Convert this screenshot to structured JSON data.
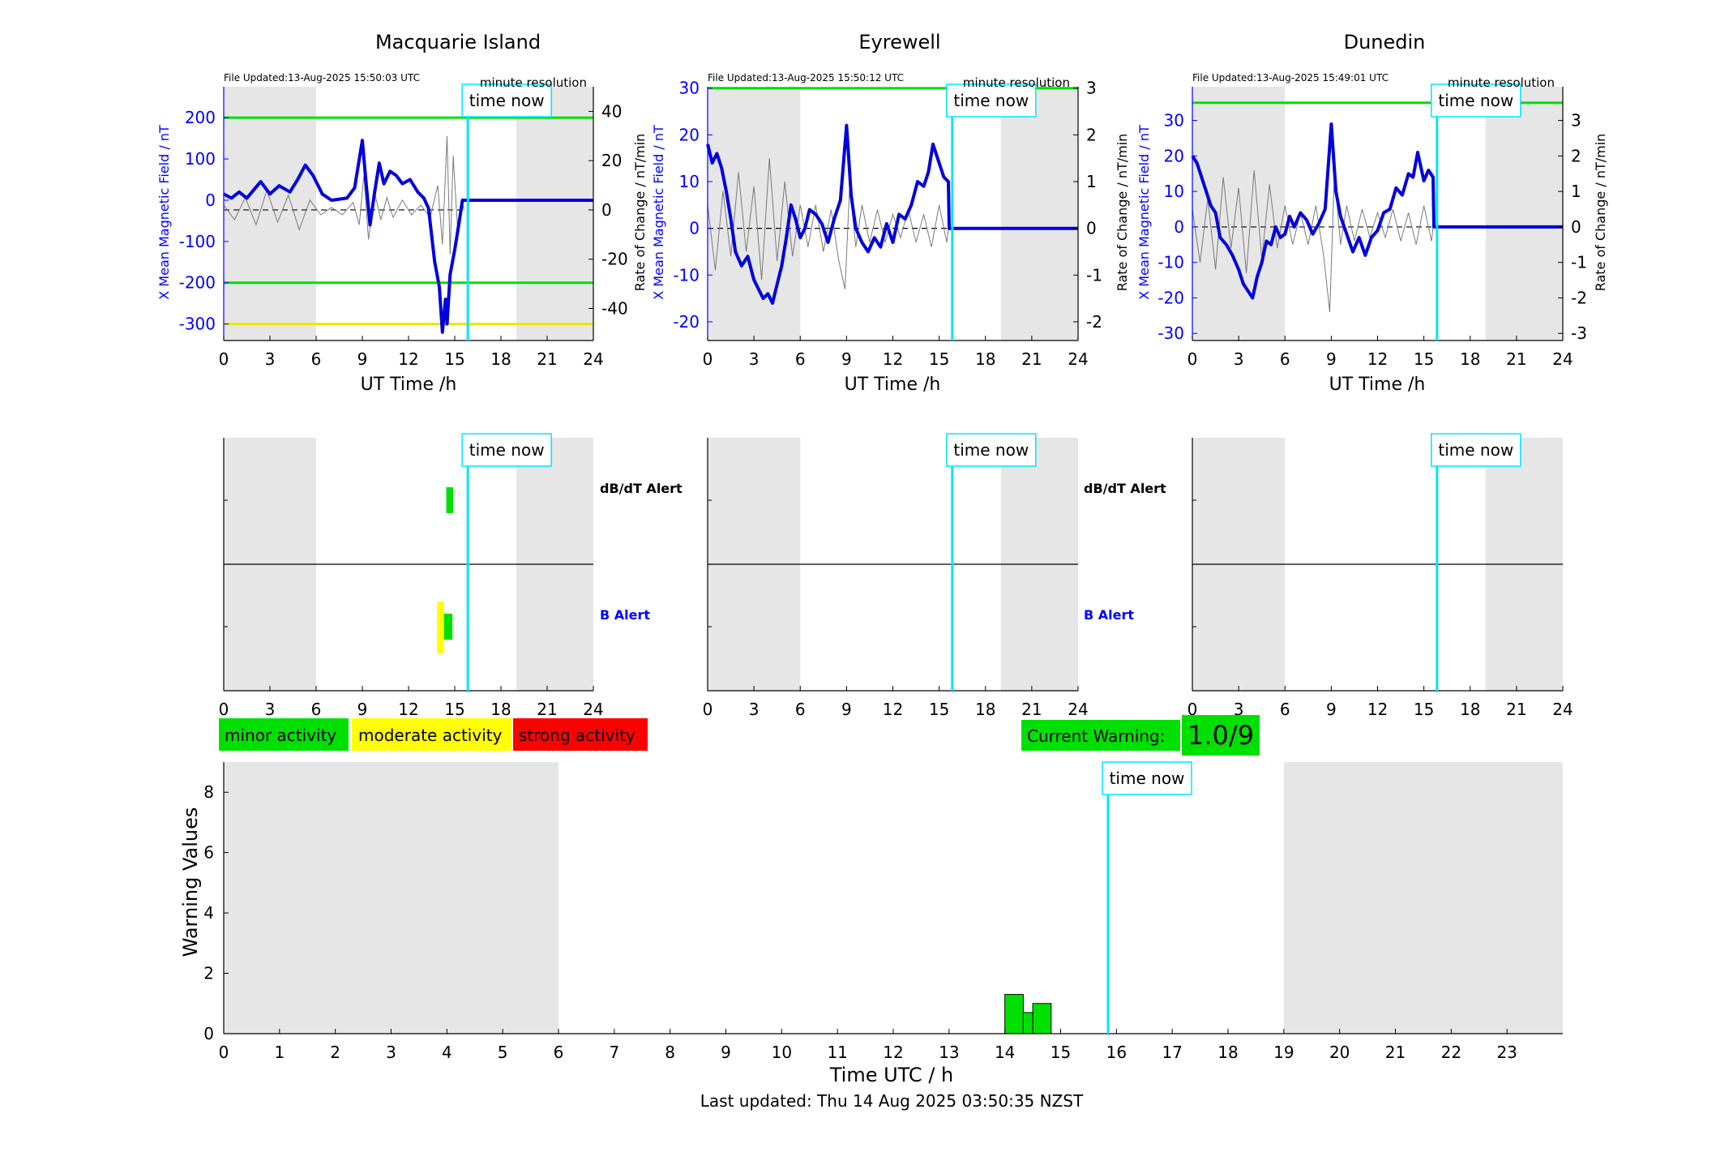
{
  "stations": [
    {
      "name": "Macquarie Island",
      "file_updated": "File Updated:13-Aug-2025 15:50:03 UTC",
      "resolution": "minute resolution",
      "left_axis": {
        "label": "X Mean Magnetic Field / nT",
        "min": -340,
        "max": 275,
        "ticks": [
          200,
          100,
          0,
          -100,
          -200,
          -300
        ]
      },
      "right_axis": {
        "label": "Rate of Change / nT/min",
        "min": -53,
        "max": 50,
        "ticks": [
          40,
          20,
          0,
          -20,
          -40
        ]
      },
      "threshold_lines": [
        {
          "value": 200,
          "color": "#00e000"
        },
        {
          "value": -200,
          "color": "#00e000"
        },
        {
          "value": -300,
          "color": "#e8e800"
        }
      ],
      "field_trace": [
        [
          0,
          15
        ],
        [
          0.5,
          5
        ],
        [
          1,
          20
        ],
        [
          1.5,
          5
        ],
        [
          2.4,
          45
        ],
        [
          3,
          15
        ],
        [
          3.6,
          35
        ],
        [
          4.3,
          20
        ],
        [
          4.8,
          50
        ],
        [
          5.3,
          85
        ],
        [
          5.8,
          60
        ],
        [
          6.4,
          15
        ],
        [
          7,
          0
        ],
        [
          8,
          5
        ],
        [
          8.5,
          30
        ],
        [
          9,
          145
        ],
        [
          9.2,
          60
        ],
        [
          9.5,
          -60
        ],
        [
          9.8,
          20
        ],
        [
          10.1,
          90
        ],
        [
          10.4,
          40
        ],
        [
          10.8,
          70
        ],
        [
          11.2,
          60
        ],
        [
          11.6,
          40
        ],
        [
          12.1,
          50
        ],
        [
          12.6,
          20
        ],
        [
          13,
          5
        ],
        [
          13.3,
          -20
        ],
        [
          13.7,
          -150
        ],
        [
          14,
          -210
        ],
        [
          14.2,
          -320
        ],
        [
          14.4,
          -240
        ],
        [
          14.5,
          -300
        ],
        [
          14.7,
          -180
        ],
        [
          15,
          -120
        ],
        [
          15.3,
          -50
        ],
        [
          15.5,
          0
        ],
        [
          15.6,
          0
        ],
        [
          24,
          0
        ]
      ],
      "rate_trace": [
        [
          0,
          2
        ],
        [
          0.7,
          -4
        ],
        [
          1.4,
          5
        ],
        [
          2.1,
          -6
        ],
        [
          2.8,
          8
        ],
        [
          3.5,
          -5
        ],
        [
          4.2,
          6
        ],
        [
          4.9,
          -8
        ],
        [
          5.6,
          4
        ],
        [
          6.3,
          -2
        ],
        [
          7,
          1
        ],
        [
          7.7,
          -2
        ],
        [
          8.4,
          3
        ],
        [
          8.8,
          -6
        ],
        [
          9.1,
          14
        ],
        [
          9.4,
          -12
        ],
        [
          9.8,
          7
        ],
        [
          10.2,
          -4
        ],
        [
          10.6,
          5
        ],
        [
          11,
          -3
        ],
        [
          11.6,
          4
        ],
        [
          12.2,
          -2
        ],
        [
          12.8,
          2
        ],
        [
          13.4,
          -3
        ],
        [
          13.9,
          10
        ],
        [
          14.2,
          -14
        ],
        [
          14.5,
          30
        ],
        [
          14.7,
          -18
        ],
        [
          14.9,
          22
        ],
        [
          15.2,
          -9
        ],
        [
          15.5,
          3
        ],
        [
          15.6,
          0
        ]
      ],
      "rate_span_end": 15.6,
      "alert_blocks": [
        {
          "row": "dBdT",
          "start": 14.45,
          "end": 14.9,
          "color": "#00e000"
        },
        {
          "row": "B",
          "start": 13.85,
          "end": 14.3,
          "color": "#ffff00",
          "tall": true
        },
        {
          "row": "B",
          "start": 14.3,
          "end": 14.85,
          "color": "#00e000"
        }
      ],
      "alert_labels": {
        "dbdt": "dB/dT Alert",
        "b": "B Alert"
      }
    },
    {
      "name": "Eyrewell",
      "file_updated": "File Updated:13-Aug-2025 15:50:12 UTC",
      "resolution": "minute resolution",
      "left_axis": {
        "label": "X Mean Magnetic Field / nT",
        "min": -24,
        "max": 30.3,
        "ticks": [
          30,
          20,
          10,
          0,
          -10,
          -20
        ]
      },
      "right_axis": {
        "label": "Rate of Change / nT/min",
        "min": -2.4,
        "max": 3.03,
        "ticks": [
          3,
          2,
          1,
          0,
          -1,
          -2
        ]
      },
      "threshold_lines": [
        {
          "value": 30,
          "color": "#00e000"
        }
      ],
      "field_trace": [
        [
          0,
          18
        ],
        [
          0.3,
          14
        ],
        [
          0.6,
          16
        ],
        [
          0.9,
          13
        ],
        [
          1.2,
          8
        ],
        [
          1.5,
          2
        ],
        [
          1.8,
          -5
        ],
        [
          2.2,
          -8
        ],
        [
          2.6,
          -6
        ],
        [
          3,
          -11
        ],
        [
          3.3,
          -13
        ],
        [
          3.6,
          -15
        ],
        [
          3.9,
          -14
        ],
        [
          4.2,
          -16
        ],
        [
          4.5,
          -12
        ],
        [
          4.8,
          -8
        ],
        [
          5.1,
          -2
        ],
        [
          5.4,
          5
        ],
        [
          5.7,
          2
        ],
        [
          6,
          -2
        ],
        [
          6.3,
          0
        ],
        [
          6.6,
          4
        ],
        [
          7,
          3
        ],
        [
          7.4,
          1
        ],
        [
          7.8,
          -3
        ],
        [
          8.2,
          2
        ],
        [
          8.6,
          6
        ],
        [
          9,
          22
        ],
        [
          9.3,
          7
        ],
        [
          9.6,
          0
        ],
        [
          10,
          -3
        ],
        [
          10.4,
          -5
        ],
        [
          10.8,
          -2
        ],
        [
          11.2,
          -4
        ],
        [
          11.6,
          1
        ],
        [
          12,
          -3
        ],
        [
          12.4,
          3
        ],
        [
          12.8,
          2
        ],
        [
          13.2,
          5
        ],
        [
          13.6,
          10
        ],
        [
          14,
          9
        ],
        [
          14.3,
          12
        ],
        [
          14.6,
          18
        ],
        [
          15,
          14
        ],
        [
          15.3,
          11
        ],
        [
          15.6,
          10
        ],
        [
          15.65,
          0
        ],
        [
          24,
          0
        ]
      ],
      "rate_trace": [
        [
          0,
          0.5
        ],
        [
          0.5,
          -0.9
        ],
        [
          1,
          0.8
        ],
        [
          1.5,
          -0.6
        ],
        [
          2,
          1.2
        ],
        [
          2.5,
          -0.5
        ],
        [
          3,
          0.9
        ],
        [
          3.5,
          -1.1
        ],
        [
          4,
          1.5
        ],
        [
          4.5,
          -0.7
        ],
        [
          5,
          1
        ],
        [
          5.5,
          -0.6
        ],
        [
          6,
          0.5
        ],
        [
          6.5,
          -0.4
        ],
        [
          7,
          0.5
        ],
        [
          7.5,
          -0.5
        ],
        [
          8,
          0.4
        ],
        [
          8.5,
          -0.7
        ],
        [
          8.9,
          -1.3
        ],
        [
          9.2,
          0.9
        ],
        [
          9.6,
          -0.4
        ],
        [
          10,
          0.5
        ],
        [
          10.5,
          -0.3
        ],
        [
          11,
          0.4
        ],
        [
          11.5,
          -0.3
        ],
        [
          12,
          0.3
        ],
        [
          12.5,
          -0.2
        ],
        [
          13,
          0.4
        ],
        [
          13.5,
          -0.3
        ],
        [
          14,
          0.3
        ],
        [
          14.5,
          -0.4
        ],
        [
          15,
          0.5
        ],
        [
          15.5,
          -0.3
        ],
        [
          15.6,
          0
        ]
      ],
      "rate_span_end": 15.6,
      "alert_blocks": [],
      "alert_labels": {
        "dbdt": "dB/dT Alert",
        "b": "B Alert"
      }
    },
    {
      "name": "Dunedin",
      "file_updated": "File Updated:13-Aug-2025 15:49:01 UTC",
      "resolution": "minute resolution",
      "left_axis": {
        "label": "X Mean Magnetic Field / nT",
        "min": -32,
        "max": 39.5,
        "ticks": [
          30,
          20,
          10,
          0,
          -10,
          -20,
          -30
        ]
      },
      "right_axis": {
        "label": "Rate of Change / nT/min",
        "min": -3.2,
        "max": 3.95,
        "ticks": [
          3,
          2,
          1,
          0,
          -1,
          -2,
          -3
        ]
      },
      "threshold_lines": [
        {
          "value": 35,
          "color": "#00e000"
        }
      ],
      "field_trace": [
        [
          0,
          20
        ],
        [
          0.3,
          18
        ],
        [
          0.6,
          14
        ],
        [
          0.9,
          10
        ],
        [
          1.2,
          6
        ],
        [
          1.5,
          4
        ],
        [
          1.8,
          -3
        ],
        [
          2.2,
          -5
        ],
        [
          2.6,
          -8
        ],
        [
          3,
          -12
        ],
        [
          3.3,
          -16
        ],
        [
          3.6,
          -18
        ],
        [
          3.9,
          -20
        ],
        [
          4.2,
          -14
        ],
        [
          4.5,
          -10
        ],
        [
          4.8,
          -4
        ],
        [
          5.1,
          -5
        ],
        [
          5.4,
          0
        ],
        [
          5.7,
          -3
        ],
        [
          6,
          -2
        ],
        [
          6.3,
          3
        ],
        [
          6.6,
          0
        ],
        [
          7,
          4
        ],
        [
          7.4,
          2
        ],
        [
          7.8,
          -2
        ],
        [
          8.2,
          1
        ],
        [
          8.6,
          5
        ],
        [
          9,
          29
        ],
        [
          9.3,
          10
        ],
        [
          9.6,
          3
        ],
        [
          10,
          -2
        ],
        [
          10.4,
          -7
        ],
        [
          10.8,
          -3
        ],
        [
          11.2,
          -8
        ],
        [
          11.6,
          -3
        ],
        [
          12,
          -1
        ],
        [
          12.4,
          4
        ],
        [
          12.8,
          5
        ],
        [
          13.2,
          11
        ],
        [
          13.6,
          9
        ],
        [
          14,
          15
        ],
        [
          14.3,
          14
        ],
        [
          14.6,
          21
        ],
        [
          15,
          13
        ],
        [
          15.3,
          16
        ],
        [
          15.6,
          14
        ],
        [
          15.65,
          0
        ],
        [
          24,
          0
        ]
      ],
      "rate_trace": [
        [
          0,
          0.5
        ],
        [
          0.5,
          -1
        ],
        [
          1,
          0.8
        ],
        [
          1.5,
          -1.2
        ],
        [
          2,
          1.4
        ],
        [
          2.5,
          -0.6
        ],
        [
          3,
          1.1
        ],
        [
          3.5,
          -1.3
        ],
        [
          4,
          1.6
        ],
        [
          4.5,
          -0.9
        ],
        [
          5,
          1.2
        ],
        [
          5.5,
          -0.6
        ],
        [
          6,
          0.6
        ],
        [
          6.5,
          -0.5
        ],
        [
          7,
          0.4
        ],
        [
          7.5,
          -0.5
        ],
        [
          8,
          0.6
        ],
        [
          8.5,
          -0.8
        ],
        [
          8.9,
          -2.4
        ],
        [
          9.2,
          1.5
        ],
        [
          9.6,
          -0.5
        ],
        [
          10,
          0.6
        ],
        [
          10.5,
          -0.4
        ],
        [
          11,
          0.5
        ],
        [
          11.5,
          -0.3
        ],
        [
          12,
          0.4
        ],
        [
          12.5,
          -0.3
        ],
        [
          13,
          0.5
        ],
        [
          13.5,
          -0.4
        ],
        [
          14,
          0.4
        ],
        [
          14.5,
          -0.5
        ],
        [
          15,
          0.6
        ],
        [
          15.5,
          -0.4
        ],
        [
          15.6,
          0
        ]
      ],
      "rate_span_end": 15.6,
      "alert_blocks": [],
      "alert_labels": {
        "dbdt": "dB/dT Alert",
        "b": "B Alert"
      }
    }
  ],
  "top_axis_label": "UT Time /h",
  "hour_ticks": [
    "0",
    "3",
    "6",
    "9",
    "12",
    "15",
    "18",
    "21",
    "24"
  ],
  "night_bands": [
    [
      0,
      6
    ],
    [
      19,
      24
    ]
  ],
  "time_now_hours": 15.85,
  "time_now_label": "time now",
  "legend": [
    {
      "label": "minor activity",
      "color": "#00e000"
    },
    {
      "label": "moderate activity",
      "color": "#ffff00"
    },
    {
      "label": "strong activity",
      "color": "#ff0000"
    }
  ],
  "current_warning": {
    "label": "Current Warning:",
    "value": "1.0/9",
    "color": "#00e000"
  },
  "chart_data": {
    "type": "bar",
    "title": "",
    "xlabel": "Time UTC / h",
    "ylabel": "Warning Values",
    "xlim": [
      0,
      24
    ],
    "ylim": [
      0,
      9
    ],
    "x_ticks": [
      "0",
      "1",
      "2",
      "3",
      "4",
      "5",
      "6",
      "7",
      "8",
      "9",
      "10",
      "11",
      "12",
      "13",
      "14",
      "15",
      "16",
      "17",
      "18",
      "19",
      "20",
      "21",
      "22",
      "23"
    ],
    "y_ticks": [
      "0",
      "2",
      "4",
      "6",
      "8"
    ],
    "bars": [
      {
        "start": 14.0,
        "end": 14.33,
        "value": 1.3
      },
      {
        "start": 14.33,
        "end": 14.5,
        "value": 0.7
      },
      {
        "start": 14.5,
        "end": 14.83,
        "value": 1.0
      }
    ],
    "bar_color": "#00e000",
    "night_bands": [
      [
        0,
        6
      ],
      [
        19,
        24
      ]
    ],
    "time_now": 15.85
  },
  "last_updated": "Last updated: Thu 14 Aug 2025 03:50:35 NZST"
}
